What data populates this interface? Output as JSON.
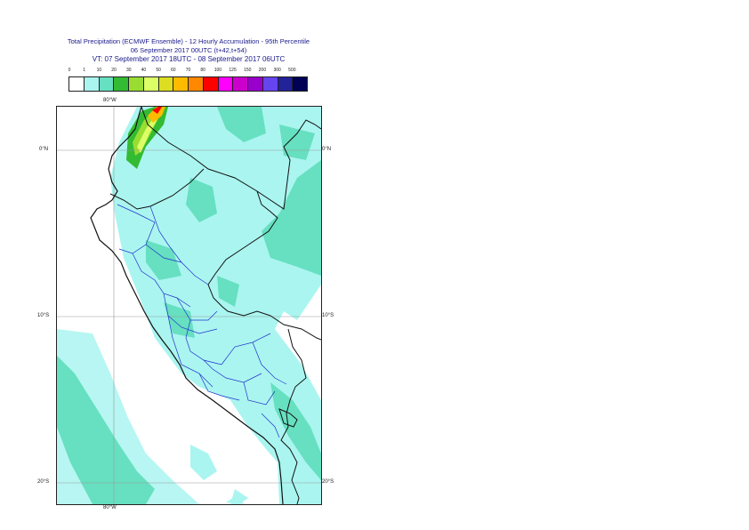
{
  "header": {
    "title_line1": "Total Precipitation (ECMWF Ensemble) - 12 Hourly Accumulation - 95th Percentile",
    "title_line2": "06 September 2017 00UTC (t+42,t+54)",
    "title_line3": "VT: 07 September 2017 18UTC - 08 September 2017 06UTC"
  },
  "legend": {
    "ticks": [
      "0",
      "1",
      "10",
      "20",
      "30",
      "40",
      "50",
      "60",
      "70",
      "80",
      "100",
      "125",
      "150",
      "200",
      "300",
      "500"
    ],
    "colors": [
      "#ffffff",
      "#aaf5f0",
      "#66e0c0",
      "#33bb33",
      "#99dd33",
      "#ddff66",
      "#dddd22",
      "#ffbb00",
      "#ff8800",
      "#ff0000",
      "#ff00ff",
      "#cc00cc",
      "#9900cc",
      "#6644ee",
      "#222299",
      "#000055"
    ]
  },
  "map": {
    "lat_labels": {
      "north": "0°N",
      "middle": "10°S",
      "south": "20°S"
    },
    "lon_labels": {
      "top": "80°W",
      "bottom": "80°W"
    }
  }
}
